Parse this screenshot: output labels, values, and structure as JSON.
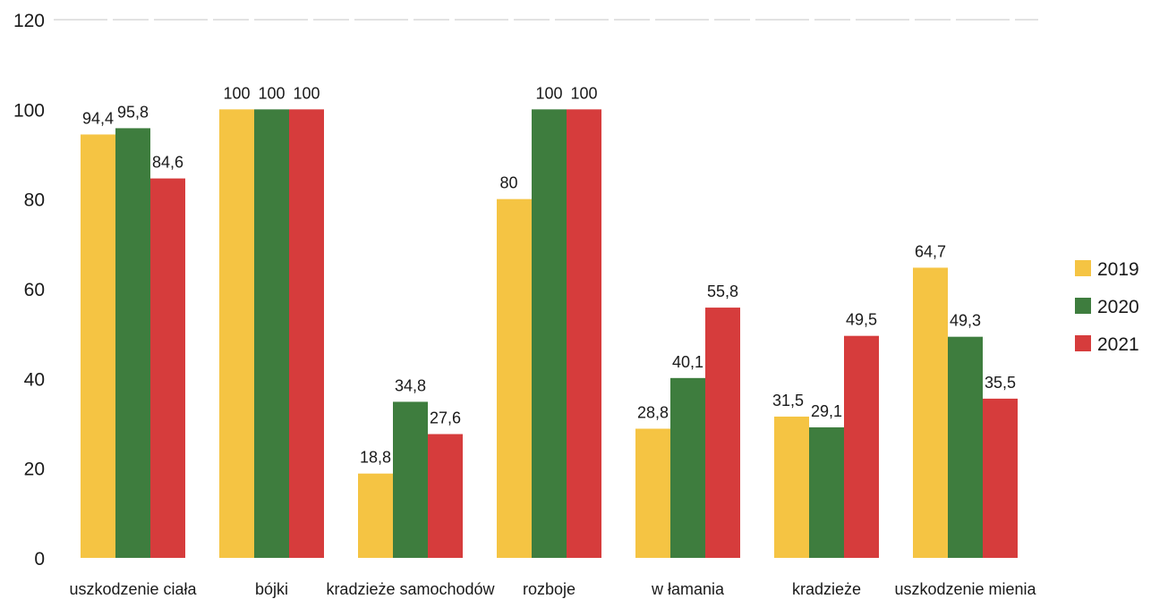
{
  "chart_data": {
    "type": "bar",
    "categories": [
      "uszkodzenie ciała",
      "bójki",
      "kradzieże samochodów",
      "rozboje",
      "w łamania",
      "kradzieże",
      "uszkodzenie mienia"
    ],
    "series": [
      {
        "name": "2019",
        "color": "#f5c443",
        "values": [
          94.4,
          100,
          18.8,
          80,
          28.8,
          31.5,
          64.7
        ],
        "labels": [
          "94,4",
          "100",
          "18,8",
          "80",
          "28,8",
          "31,5",
          "64,7"
        ]
      },
      {
        "name": "2020",
        "color": "#3e7d3e",
        "values": [
          95.8,
          100,
          34.8,
          100,
          40.1,
          29.1,
          49.3
        ],
        "labels": [
          "95,8",
          "100",
          "34,8",
          "100",
          "40,1",
          "29,1",
          "49,3"
        ]
      },
      {
        "name": "2021",
        "color": "#d63c3c",
        "values": [
          84.6,
          100,
          27.6,
          100,
          55.8,
          49.5,
          35.5
        ],
        "labels": [
          "84,6",
          "100",
          "27,6",
          "100",
          "55,8",
          "49,5",
          "35,5"
        ]
      }
    ],
    "yticks": [
      "0",
      "20",
      "40",
      "60",
      "80",
      "100",
      "120"
    ],
    "ylim": [
      0,
      120
    ],
    "grid": false,
    "legend": "right"
  }
}
